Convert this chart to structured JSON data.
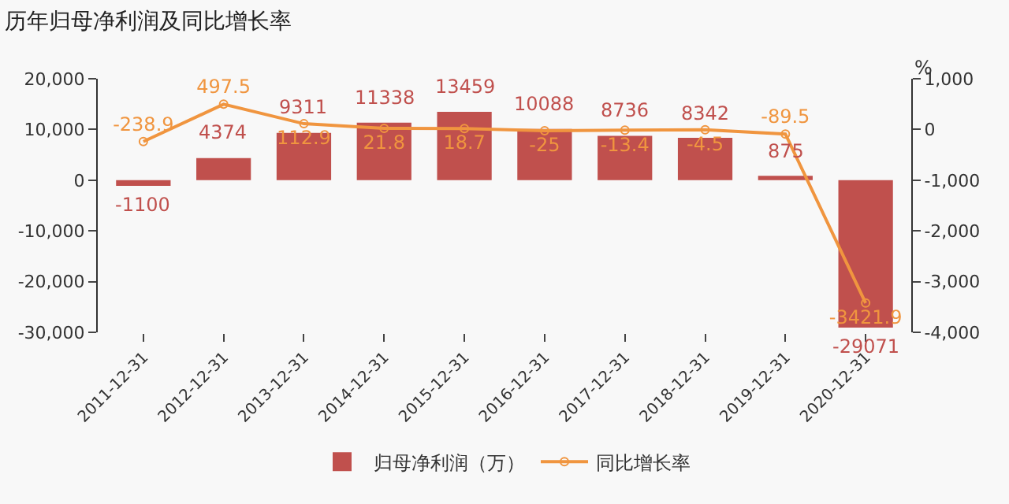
{
  "chart_data": {
    "type": "bar",
    "title": "历年归母净利润及同比增长率",
    "y2label": "%",
    "categories": [
      "2011-12-31",
      "2012-12-31",
      "2013-12-31",
      "2014-12-31",
      "2015-12-31",
      "2016-12-31",
      "2017-12-31",
      "2018-12-31",
      "2019-12-31",
      "2020-12-31"
    ],
    "series": [
      {
        "name": "归母净利润（万）",
        "type": "bar",
        "color": "#c0504d",
        "values": [
          -1100,
          4374,
          9311,
          11338,
          13459,
          10088,
          8736,
          8342,
          875,
          -29071
        ]
      },
      {
        "name": "同比增长率",
        "type": "line",
        "axis": "y2",
        "color": "#f0953f",
        "marker": "circle",
        "values": [
          -238.9,
          497.5,
          112.9,
          21.8,
          18.7,
          -25.0,
          -13.4,
          -4.5,
          -89.5,
          -3421.9
        ]
      }
    ],
    "ylim": [
      -30000,
      20000
    ],
    "yticks": [
      {
        "value": -30000,
        "label": "-30,000"
      },
      {
        "value": -20000,
        "label": "-20,000"
      },
      {
        "value": -10000,
        "label": "-10,000"
      },
      0,
      {
        "value": 10000,
        "label": "10,000"
      },
      {
        "value": 20000,
        "label": "20,000"
      }
    ],
    "y2lim": [
      -4000,
      1000
    ],
    "y2ticks": [
      {
        "value": -4000,
        "label": "-4,000"
      },
      {
        "value": -3000,
        "label": "-3,000"
      },
      {
        "value": -2000,
        "label": "-2,000"
      },
      {
        "value": -1000,
        "label": "-1,000"
      },
      0,
      {
        "value": 1000,
        "label": "1,000"
      }
    ],
    "data_labels": true,
    "grid": false,
    "legend": "bottom"
  }
}
